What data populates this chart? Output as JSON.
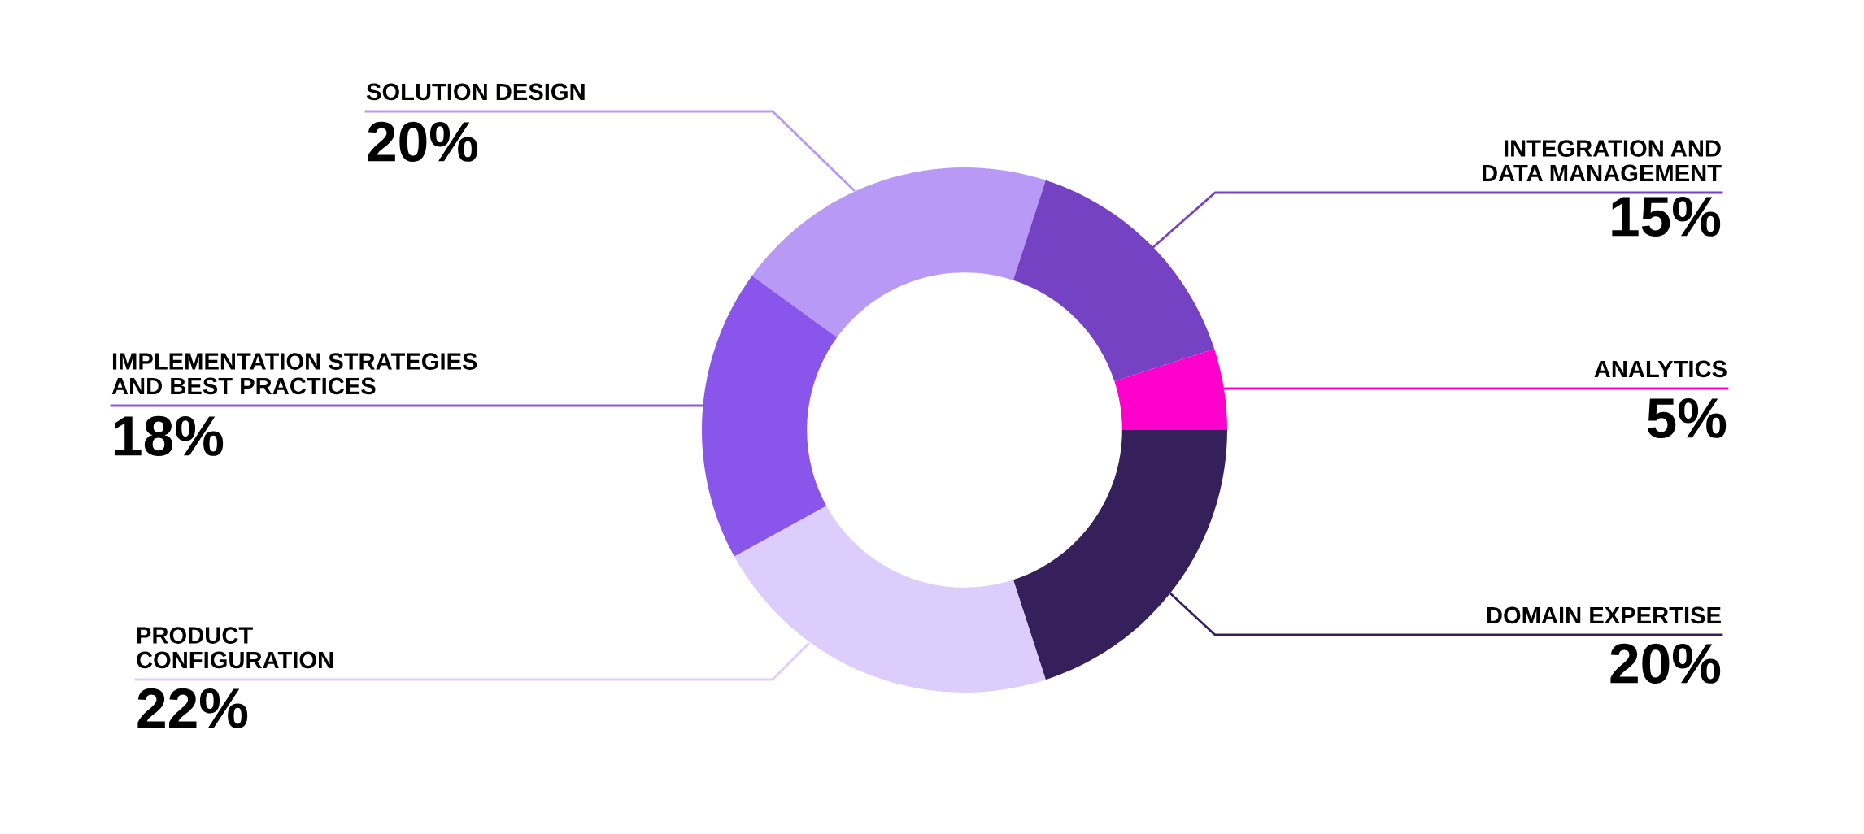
{
  "chart_data": {
    "type": "donut",
    "categories": [
      "SOLUTION DESIGN",
      "INTEGRATION AND\nDATA MANAGEMENT",
      "ANALYTICS",
      "DOMAIN EXPERTISE",
      "PRODUCT\nCONFIGURATION",
      "IMPLEMENTATION STRATEGIES\nAND BEST PRACTICES"
    ],
    "values": [
      20,
      15,
      5,
      20,
      22,
      18
    ],
    "value_labels": [
      "20%",
      "15%",
      "5%",
      "20%",
      "22%",
      "18%"
    ],
    "colors": [
      "#b899f5",
      "#7442c2",
      "#ff00cc",
      "#36205c",
      "#ddcdfc",
      "#8a55ea"
    ]
  }
}
